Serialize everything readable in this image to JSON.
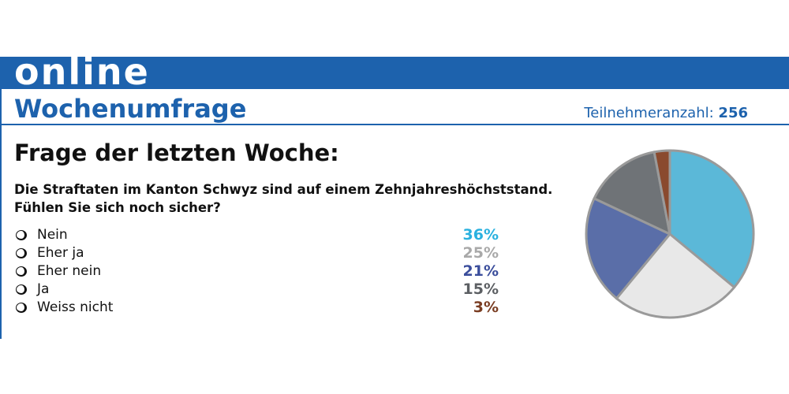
{
  "header": {
    "brand": "online",
    "title": "Wochenumfrage",
    "participants_label": "Teilnehmeranzahl:",
    "participants_count": "256"
  },
  "question": {
    "heading": "Frage der letzten Woche:",
    "line1": "Die Straftaten im Kanton Schwyz sind auf einem Zehnjahreshöchststand.",
    "line2": "Fühlen Sie sich noch sicher?"
  },
  "chart_data": {
    "type": "pie",
    "categories": [
      "Nein",
      "Eher ja",
      "Eher nein",
      "Ja",
      "Weiss nicht"
    ],
    "values": [
      36,
      25,
      21,
      15,
      3
    ],
    "value_labels": [
      "36%",
      "25%",
      "21%",
      "15%",
      "3%"
    ],
    "colors": [
      "#5bb8d8",
      "#e8e8e8",
      "#5a6ea8",
      "#6f7377",
      "#8a4a2e"
    ],
    "label_colors": [
      "#2ab1df",
      "#a9a9a9",
      "#3b4e9c",
      "#5c5f63",
      "#7a3d22"
    ],
    "start_angle_deg": 0,
    "direction": "clockwise",
    "stroke_color": "#9a9a9a"
  }
}
